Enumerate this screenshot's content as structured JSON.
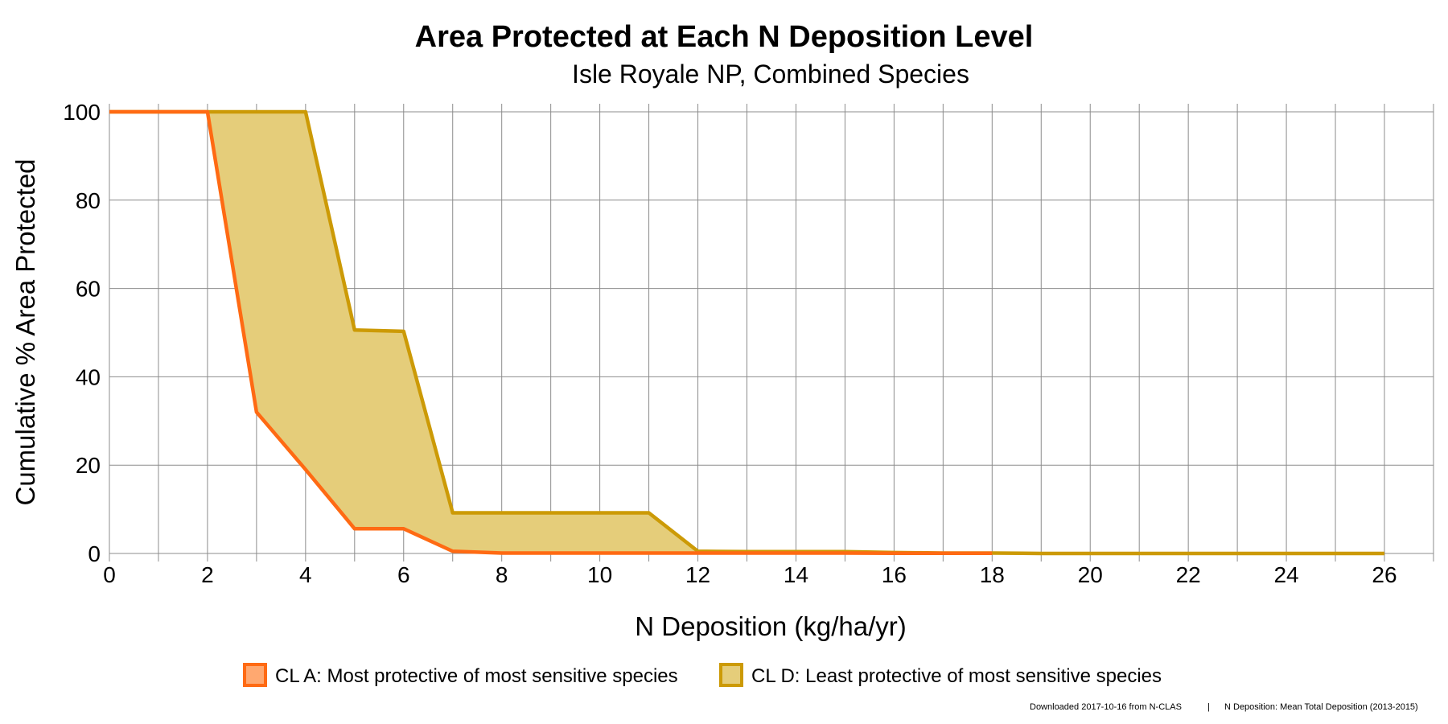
{
  "chart_data": {
    "type": "area",
    "title": "Area Protected at Each N Deposition Level",
    "subtitle": "Isle Royale NP, Combined Species",
    "xlabel": "N Deposition (kg/ha/yr)",
    "ylabel": "Cumulative % Area Protected",
    "xlim": [
      0,
      27
    ],
    "ylim": [
      0,
      100
    ],
    "x_ticks": [
      0,
      2,
      4,
      6,
      8,
      10,
      12,
      14,
      16,
      18,
      20,
      22,
      24,
      26
    ],
    "y_ticks": [
      0,
      20,
      40,
      60,
      80,
      100
    ],
    "grid": true,
    "legend_position": "bottom",
    "band_fill_color": "#e5cd7a",
    "series": [
      {
        "name": "CL A: Most protective of most sensitive species",
        "color": "#ff6a13",
        "legend_fill": "#ffa870",
        "x": [
          0,
          1,
          2,
          3,
          4,
          5,
          6,
          7,
          8,
          9,
          10,
          11,
          12,
          13,
          14,
          15,
          16,
          17,
          18
        ],
        "y": [
          100,
          100,
          100,
          32,
          19,
          5.6,
          5.6,
          0.5,
          0.1,
          0.1,
          0.1,
          0.1,
          0.1,
          0.1,
          0.1,
          0.1,
          0.05,
          0.05,
          0.05
        ]
      },
      {
        "name": "CL D: Least protective of most sensitive species",
        "color": "#cc9a06",
        "legend_fill": "#e5cd7a",
        "x": [
          0,
          1,
          2,
          3,
          4,
          5,
          6,
          7,
          8,
          9,
          10,
          11,
          12,
          13,
          14,
          15,
          16,
          17,
          18,
          19,
          20,
          21,
          22,
          23,
          24,
          25,
          26
        ],
        "y": [
          100,
          100,
          100,
          100,
          100,
          50.6,
          50.3,
          9.2,
          9.2,
          9.2,
          9.2,
          9.2,
          0.5,
          0.4,
          0.4,
          0.4,
          0.2,
          0.1,
          0.1,
          0,
          0,
          0,
          0,
          0,
          0,
          0,
          0
        ]
      }
    ]
  },
  "footer": {
    "source": "Downloaded 2017-10-16 from N-CLAS",
    "separator": "|",
    "note": "N Deposition: Mean Total Deposition (2013-2015)"
  }
}
